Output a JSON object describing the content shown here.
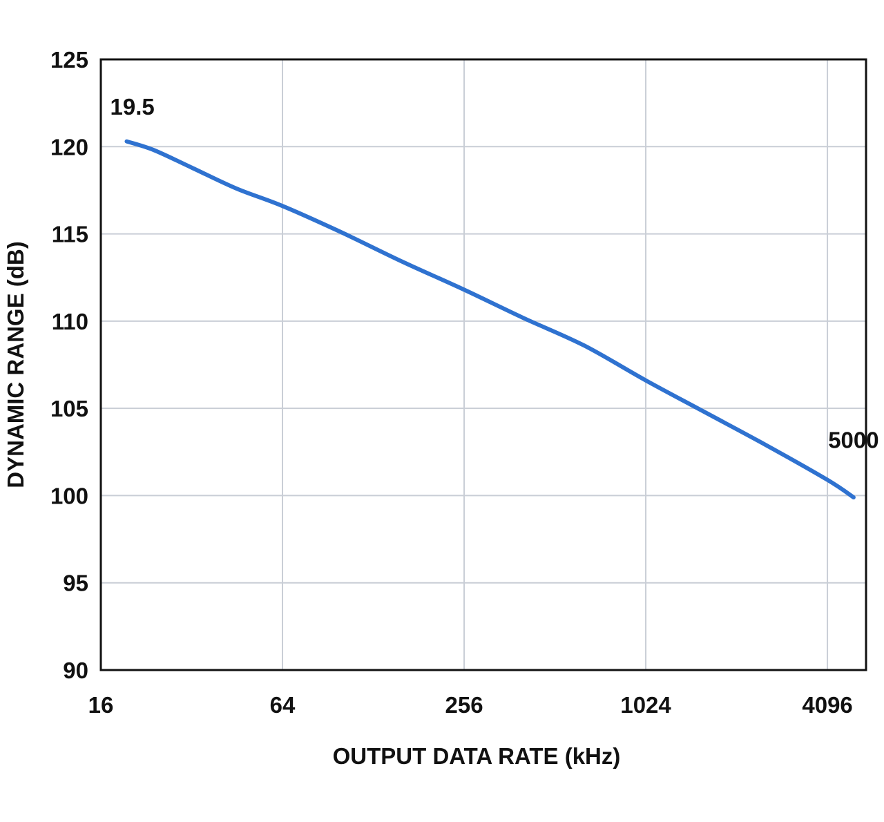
{
  "chart_data": {
    "type": "line",
    "title": "",
    "xlabel": "OUTPUT DATA RATE (kHz)",
    "ylabel": "DYNAMIC RANGE (dB)",
    "x_scale": "log2",
    "xlim": [
      16,
      5500
    ],
    "ylim": [
      90,
      125
    ],
    "x_ticks": [
      16,
      64,
      256,
      1024,
      4096
    ],
    "y_ticks": [
      90,
      95,
      100,
      105,
      110,
      115,
      120,
      125
    ],
    "grid": true,
    "series": [
      {
        "name": "",
        "color": "#2f72d0",
        "x": [
          19.5,
          24,
          32,
          45,
          64,
          100,
          160,
          256,
          400,
          640,
          1024,
          1600,
          2560,
          4096,
          5000
        ],
        "y": [
          120.3,
          119.8,
          118.8,
          117.6,
          116.6,
          115.1,
          113.4,
          111.8,
          110.2,
          108.6,
          106.6,
          104.8,
          102.9,
          100.9,
          99.9
        ]
      }
    ],
    "annotations": [
      {
        "text": "19.5",
        "x": 19.5,
        "y": 122.3
      },
      {
        "text": "5000",
        "x": 5000,
        "y": 103.2
      }
    ]
  }
}
